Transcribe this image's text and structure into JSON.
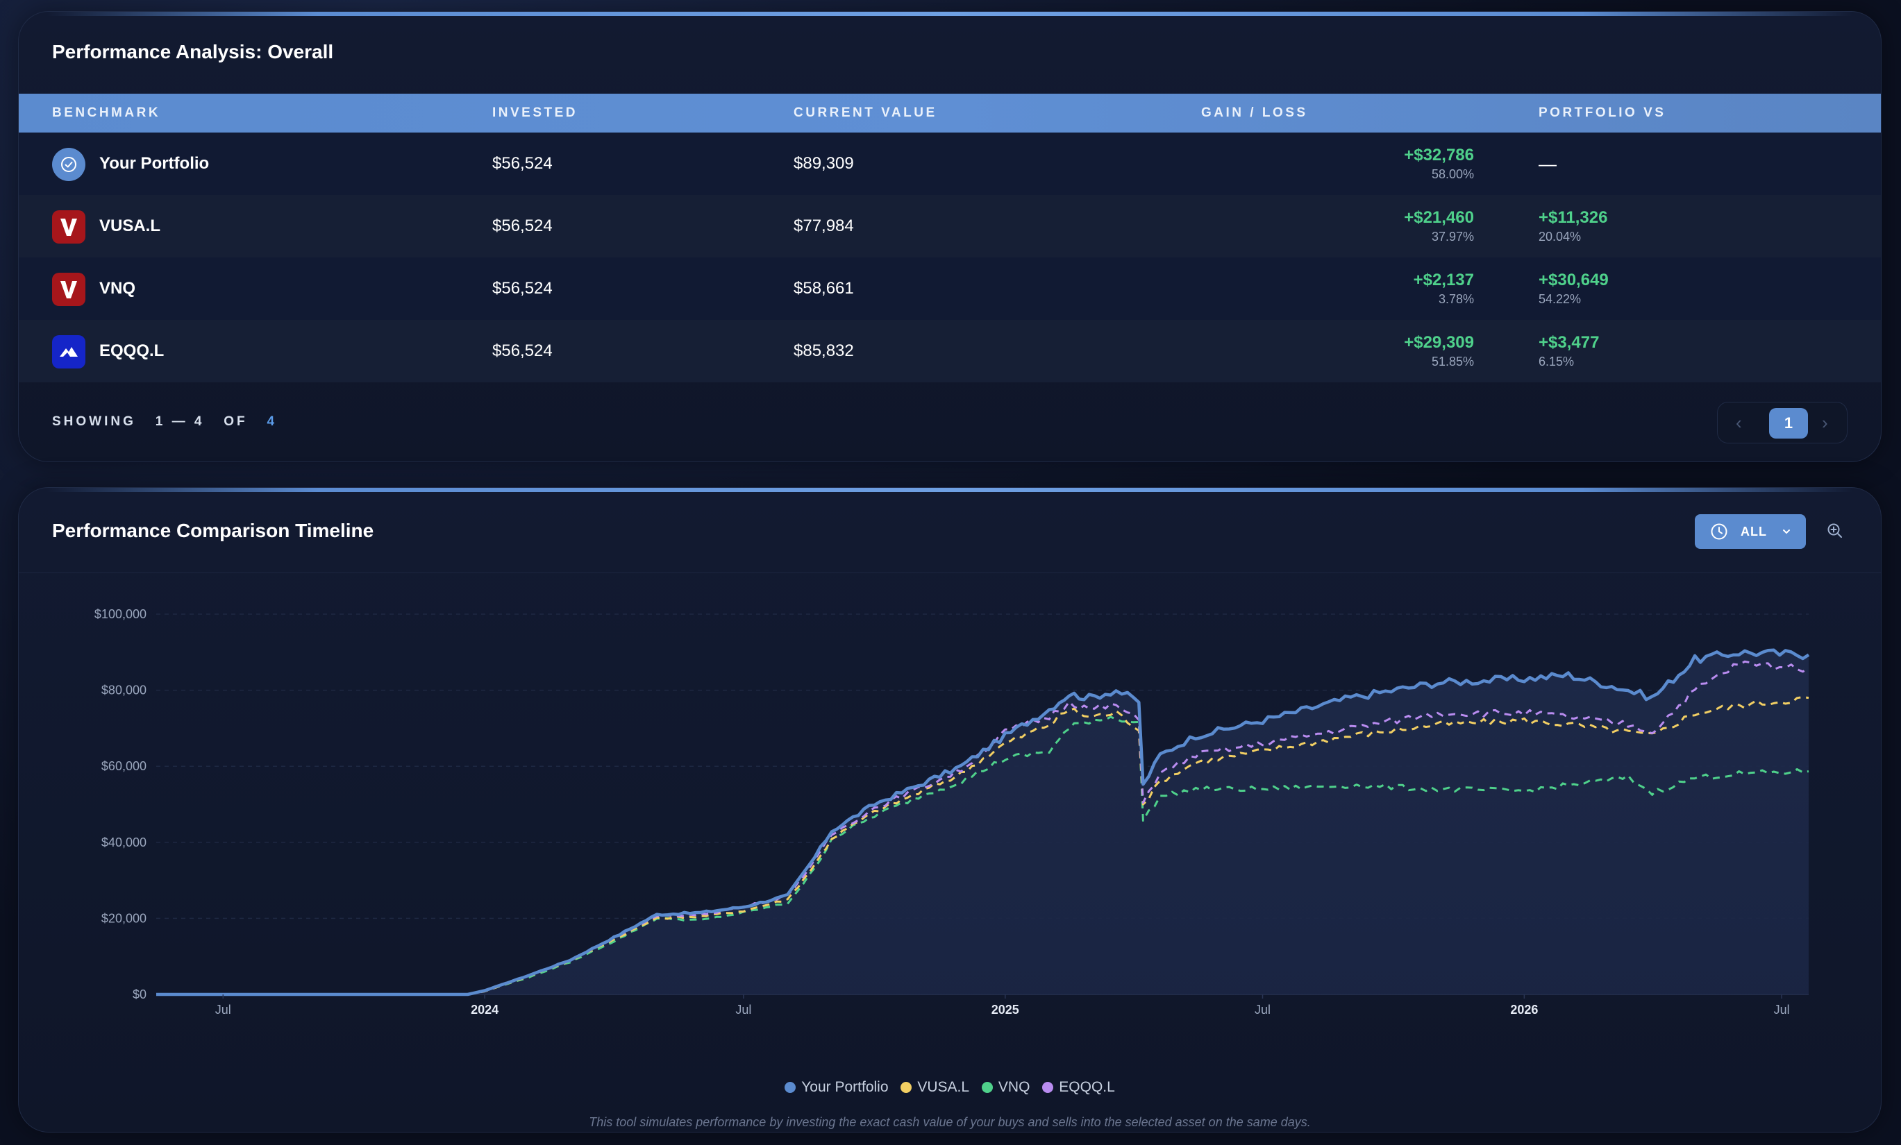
{
  "performance": {
    "title": "Performance Analysis: Overall",
    "columns": [
      "BENCHMARK",
      "INVESTED",
      "CURRENT VALUE",
      "GAIN / LOSS",
      "PORTFOLIO VS"
    ],
    "rows": [
      {
        "name": "Your Portfolio",
        "icon": "portfolio-icon",
        "invested": "$56,524",
        "current": "$89,309",
        "gain": "+$32,786",
        "gain_pct": "58.00%",
        "vs": "—",
        "vs_pct": ""
      },
      {
        "name": "VUSA.L",
        "icon": "vanguard-logo-icon",
        "invested": "$56,524",
        "current": "$77,984",
        "gain": "+$21,460",
        "gain_pct": "37.97%",
        "vs": "+$11,326",
        "vs_pct": "20.04%"
      },
      {
        "name": "VNQ",
        "icon": "vanguard-logo-icon",
        "invested": "$56,524",
        "current": "$58,661",
        "gain": "+$2,137",
        "gain_pct": "3.78%",
        "vs": "+$30,649",
        "vs_pct": "54.22%"
      },
      {
        "name": "EQQQ.L",
        "icon": "invesco-logo-icon",
        "invested": "$56,524",
        "current": "$85,832",
        "gain": "+$29,309",
        "gain_pct": "51.85%",
        "vs": "+$3,477",
        "vs_pct": "6.15%"
      }
    ],
    "showing_label": "SHOWING",
    "showing_range": "1 — 4",
    "showing_of": "OF",
    "showing_total": "4",
    "pager": {
      "current_page": "1",
      "prev_icon": "chevron-left-icon",
      "next_icon": "chevron-right-icon"
    }
  },
  "timeline": {
    "title": "Performance Comparison Timeline",
    "range_button": "ALL",
    "range_icon": "clock-icon",
    "zoom_icon": "zoom-in-icon",
    "footnote": "This tool simulates performance by investing the exact cash value of your buys and sells into the selected asset on the same days."
  },
  "colors": {
    "accent": "#5b8bcf",
    "positive": "#4fd18b",
    "portfolio": "#5b8bcf",
    "vusa": "#f2cf63",
    "vnq": "#4fd18b",
    "eqqq": "#b98cf0"
  },
  "chart_data": {
    "type": "line",
    "x_ticks": [
      {
        "label": "Jul",
        "date": "2023-07-01",
        "bold": false
      },
      {
        "label": "2024",
        "date": "2024-01-01",
        "bold": true
      },
      {
        "label": "Jul",
        "date": "2024-07-01",
        "bold": false
      },
      {
        "label": "2025",
        "date": "2025-01-01",
        "bold": true
      },
      {
        "label": "Jul",
        "date": "2025-07-01",
        "bold": false
      },
      {
        "label": "2026",
        "date": "2026-01-01",
        "bold": true
      },
      {
        "label": "Jul",
        "date": "2026-07-01",
        "bold": false
      }
    ],
    "y_ticks": [
      "$0",
      "$20,000",
      "$40,000",
      "$60,000",
      "$80,000",
      "$100,000"
    ],
    "ylim": [
      0,
      100000
    ],
    "xlim": [
      "2023-05-15",
      "2026-07-20"
    ],
    "grid": true,
    "legend": "bottom-center",
    "series": [
      {
        "name": "Your Portfolio",
        "color": "#5b8bcf",
        "dashed": false,
        "fill": true,
        "points": [
          [
            "2023-05-15",
            0
          ],
          [
            "2023-12-20",
            0
          ],
          [
            "2024-01-01",
            1000
          ],
          [
            "2024-02-01",
            5000
          ],
          [
            "2024-03-01",
            9000
          ],
          [
            "2024-04-01",
            15000
          ],
          [
            "2024-05-01",
            21000
          ],
          [
            "2024-06-01",
            21500
          ],
          [
            "2024-07-01",
            23000
          ],
          [
            "2024-08-01",
            26000
          ],
          [
            "2024-08-20",
            36000
          ],
          [
            "2024-09-01",
            43000
          ],
          [
            "2024-10-01",
            50000
          ],
          [
            "2024-11-01",
            55000
          ],
          [
            "2024-12-01",
            60000
          ],
          [
            "2025-01-01",
            68000
          ],
          [
            "2025-02-01",
            75000
          ],
          [
            "2025-02-15",
            79000
          ],
          [
            "2025-03-01",
            78000
          ],
          [
            "2025-03-20",
            80000
          ],
          [
            "2025-04-05",
            77000
          ],
          [
            "2025-04-08",
            55000
          ],
          [
            "2025-04-20",
            63000
          ],
          [
            "2025-05-15",
            68000
          ],
          [
            "2025-07-01",
            72000
          ],
          [
            "2025-09-01",
            78000
          ],
          [
            "2025-11-01",
            82000
          ],
          [
            "2026-01-01",
            83000
          ],
          [
            "2026-02-01",
            84000
          ],
          [
            "2026-03-15",
            80000
          ],
          [
            "2026-04-01",
            78000
          ],
          [
            "2026-05-01",
            88000
          ],
          [
            "2026-06-01",
            90000
          ],
          [
            "2026-07-20",
            89309
          ]
        ]
      },
      {
        "name": "VUSA.L",
        "color": "#f2cf63",
        "dashed": true,
        "fill": false,
        "points": [
          [
            "2023-05-15",
            0
          ],
          [
            "2023-12-20",
            0
          ],
          [
            "2024-01-01",
            800
          ],
          [
            "2024-02-01",
            4800
          ],
          [
            "2024-03-01",
            8800
          ],
          [
            "2024-04-01",
            14500
          ],
          [
            "2024-05-01",
            20000
          ],
          [
            "2024-06-01",
            20500
          ],
          [
            "2024-07-01",
            22000
          ],
          [
            "2024-08-01",
            25000
          ],
          [
            "2024-08-20",
            34000
          ],
          [
            "2024-09-01",
            41000
          ],
          [
            "2024-10-01",
            48000
          ],
          [
            "2024-11-01",
            53000
          ],
          [
            "2024-12-01",
            58000
          ],
          [
            "2025-01-01",
            66000
          ],
          [
            "2025-02-01",
            71000
          ],
          [
            "2025-02-15",
            75000
          ],
          [
            "2025-03-01",
            73000
          ],
          [
            "2025-03-20",
            74000
          ],
          [
            "2025-04-05",
            70000
          ],
          [
            "2025-04-08",
            50000
          ],
          [
            "2025-04-20",
            56000
          ],
          [
            "2025-05-15",
            61000
          ],
          [
            "2025-07-01",
            64000
          ],
          [
            "2025-09-01",
            68000
          ],
          [
            "2025-11-01",
            71000
          ],
          [
            "2026-01-01",
            72000
          ],
          [
            "2026-02-01",
            71000
          ],
          [
            "2026-03-15",
            69000
          ],
          [
            "2026-04-01",
            68000
          ],
          [
            "2026-05-01",
            74000
          ],
          [
            "2026-06-01",
            76000
          ],
          [
            "2026-07-20",
            77984
          ]
        ]
      },
      {
        "name": "VNQ",
        "color": "#4fd18b",
        "dashed": true,
        "fill": false,
        "points": [
          [
            "2023-05-15",
            0
          ],
          [
            "2023-12-20",
            0
          ],
          [
            "2024-01-01",
            900
          ],
          [
            "2024-02-01",
            4500
          ],
          [
            "2024-03-01",
            8500
          ],
          [
            "2024-04-01",
            14000
          ],
          [
            "2024-05-01",
            20000
          ],
          [
            "2024-06-01",
            19500
          ],
          [
            "2024-07-01",
            21500
          ],
          [
            "2024-08-01",
            24000
          ],
          [
            "2024-08-20",
            33000
          ],
          [
            "2024-09-01",
            41000
          ],
          [
            "2024-10-01",
            47000
          ],
          [
            "2024-11-01",
            52000
          ],
          [
            "2024-12-01",
            56000
          ],
          [
            "2025-01-01",
            62000
          ],
          [
            "2025-02-01",
            64000
          ],
          [
            "2025-02-15",
            70000
          ],
          [
            "2025-03-01",
            72000
          ],
          [
            "2025-03-20",
            73000
          ],
          [
            "2025-04-05",
            71000
          ],
          [
            "2025-04-08",
            46000
          ],
          [
            "2025-04-20",
            52000
          ],
          [
            "2025-05-15",
            54000
          ],
          [
            "2025-07-01",
            54000
          ],
          [
            "2025-09-01",
            55000
          ],
          [
            "2025-11-01",
            54000
          ],
          [
            "2026-01-01",
            53500
          ],
          [
            "2026-02-01",
            55000
          ],
          [
            "2026-03-15",
            57000
          ],
          [
            "2026-04-01",
            53000
          ],
          [
            "2026-05-01",
            57000
          ],
          [
            "2026-06-01",
            58000
          ],
          [
            "2026-07-20",
            58661
          ]
        ]
      },
      {
        "name": "EQQQ.L",
        "color": "#b98cf0",
        "dashed": true,
        "fill": false,
        "points": [
          [
            "2023-05-15",
            0
          ],
          [
            "2023-12-20",
            0
          ],
          [
            "2024-01-01",
            850
          ],
          [
            "2024-02-01",
            5000
          ],
          [
            "2024-03-01",
            9000
          ],
          [
            "2024-04-01",
            15000
          ],
          [
            "2024-05-01",
            20500
          ],
          [
            "2024-06-01",
            21000
          ],
          [
            "2024-07-01",
            23000
          ],
          [
            "2024-08-01",
            26000
          ],
          [
            "2024-08-20",
            35000
          ],
          [
            "2024-09-01",
            42000
          ],
          [
            "2024-10-01",
            49000
          ],
          [
            "2024-11-01",
            54000
          ],
          [
            "2024-12-01",
            59000
          ],
          [
            "2025-01-01",
            69000
          ],
          [
            "2025-02-01",
            73000
          ],
          [
            "2025-02-15",
            77000
          ],
          [
            "2025-03-01",
            75000
          ],
          [
            "2025-03-20",
            76000
          ],
          [
            "2025-04-05",
            72000
          ],
          [
            "2025-04-08",
            51000
          ],
          [
            "2025-04-20",
            58000
          ],
          [
            "2025-05-15",
            63000
          ],
          [
            "2025-07-01",
            66000
          ],
          [
            "2025-09-01",
            70000
          ],
          [
            "2025-11-01",
            74000
          ],
          [
            "2026-01-01",
            74000
          ],
          [
            "2026-02-01",
            73000
          ],
          [
            "2026-03-15",
            71000
          ],
          [
            "2026-04-01",
            69000
          ],
          [
            "2026-05-01",
            80000
          ],
          [
            "2026-06-01",
            87000
          ],
          [
            "2026-07-20",
            85832
          ]
        ]
      }
    ]
  }
}
